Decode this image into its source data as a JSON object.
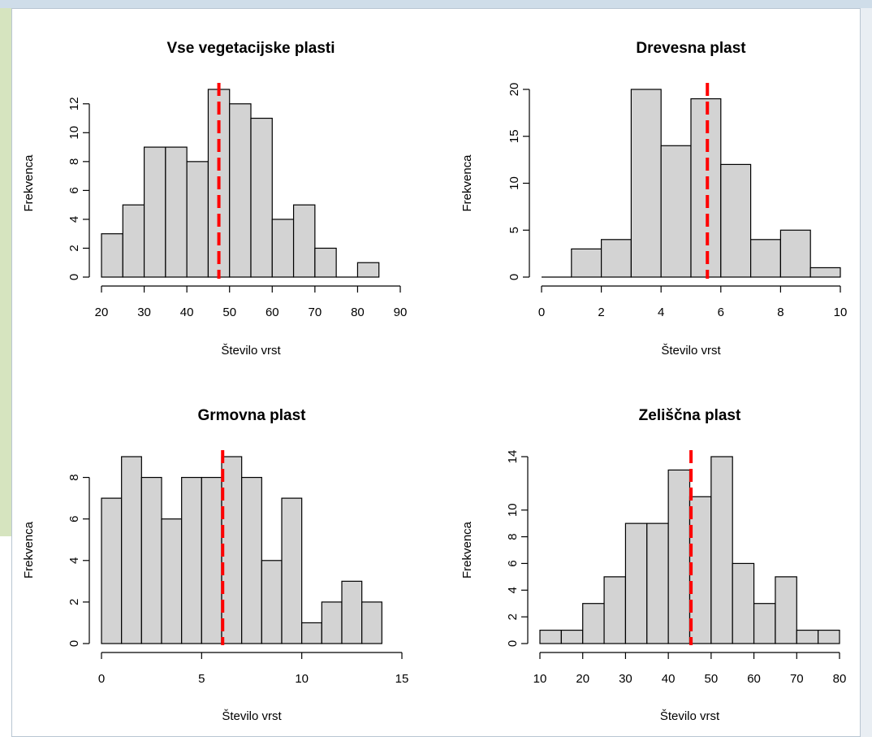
{
  "chart_data": [
    {
      "type": "bar",
      "title": "Vse vegetacijske plasti",
      "xlabel": "Število vrst",
      "ylabel": "Frekvenca",
      "bin_start": 20,
      "bin_width": 5,
      "values": [
        3,
        5,
        9,
        9,
        8,
        13,
        12,
        11,
        4,
        5,
        2,
        0,
        1
      ],
      "xlim": [
        20,
        90
      ],
      "ylim": [
        0,
        13
      ],
      "x_ticks": [
        20,
        30,
        40,
        50,
        60,
        70,
        80,
        90
      ],
      "y_ticks": [
        0,
        2,
        4,
        6,
        8,
        10,
        12
      ],
      "mean": 47.5
    },
    {
      "type": "bar",
      "title": "Drevesna plast",
      "xlabel": "Število vrst",
      "ylabel": "Frekvenca",
      "bin_start": 0,
      "bin_width": 1,
      "values": [
        0,
        3,
        4,
        20,
        14,
        19,
        12,
        4,
        5,
        1
      ],
      "xlim": [
        0,
        10
      ],
      "ylim": [
        0,
        20
      ],
      "x_ticks": [
        0,
        2,
        4,
        6,
        8,
        10
      ],
      "y_ticks": [
        0,
        5,
        10,
        15,
        20
      ],
      "mean": 5.55
    },
    {
      "type": "bar",
      "title": "Grmovna plast",
      "xlabel": "Število vrst",
      "ylabel": "Frekvenca",
      "bin_start": 0,
      "bin_width": 1,
      "values": [
        7,
        9,
        8,
        6,
        8,
        8,
        9,
        8,
        4,
        7,
        1,
        2,
        3,
        2
      ],
      "xlim": [
        0,
        15
      ],
      "ylim": [
        0,
        9
      ],
      "x_ticks": [
        0,
        5,
        10,
        15
      ],
      "y_ticks": [
        0,
        2,
        4,
        6,
        8
      ],
      "mean": 6.05
    },
    {
      "type": "bar",
      "title": "Zeliščna plast",
      "xlabel": "Število vrst",
      "ylabel": "Frekvenca",
      "bin_start": 10,
      "bin_width": 5,
      "values": [
        1,
        1,
        3,
        5,
        9,
        9,
        13,
        11,
        14,
        6,
        3,
        5,
        1,
        1
      ],
      "xlim": [
        10,
        80
      ],
      "ylim": [
        0,
        14
      ],
      "x_ticks": [
        10,
        20,
        30,
        40,
        50,
        60,
        70,
        80
      ],
      "y_ticks": [
        0,
        2,
        4,
        6,
        8,
        10,
        14
      ],
      "mean": 45.3
    }
  ],
  "colors": {
    "bar_fill": "#d3d3d3",
    "bar_stroke": "#000000",
    "mean_line": "#ff0000"
  }
}
